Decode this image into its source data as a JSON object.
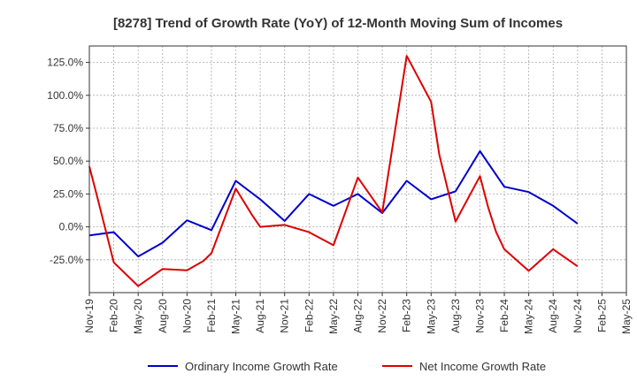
{
  "chart_data": {
    "type": "line",
    "title": "[8278]  Trend of Growth Rate (YoY) of 12-Month Moving Sum of Incomes",
    "xlabel": "",
    "ylabel": "",
    "ylim": [
      -50,
      137.5
    ],
    "y_ticks": [
      -25,
      0,
      25,
      50,
      75,
      100,
      125
    ],
    "y_tick_labels": [
      "-25.0%",
      "0.0%",
      "25.0%",
      "50.0%",
      "75.0%",
      "100.0%",
      "125.0%"
    ],
    "x_tick_labels": [
      "Nov-19",
      "Feb-20",
      "May-20",
      "Aug-20",
      "Nov-20",
      "Feb-21",
      "May-21",
      "Aug-21",
      "Nov-21",
      "Feb-22",
      "May-22",
      "Aug-22",
      "Nov-22",
      "Feb-23",
      "May-23",
      "Aug-23",
      "Nov-23",
      "Feb-24",
      "May-24",
      "Aug-24",
      "Nov-24",
      "Feb-25",
      "May-25"
    ],
    "grid": true,
    "legend_position": "bottom",
    "series": [
      {
        "name": "Ordinary Income Growth Rate",
        "color": "#0000cc",
        "points": [
          [
            0,
            -6.5
          ],
          [
            3,
            -4
          ],
          [
            6,
            -22.5
          ],
          [
            9,
            -12
          ],
          [
            12,
            5
          ],
          [
            15,
            -2.5
          ],
          [
            18,
            35
          ],
          [
            21,
            21
          ],
          [
            24,
            4.5
          ],
          [
            27,
            25
          ],
          [
            30,
            16
          ],
          [
            33,
            25
          ],
          [
            36,
            10.5
          ],
          [
            39,
            35
          ],
          [
            42,
            21
          ],
          [
            45,
            27
          ],
          [
            48,
            57.5
          ],
          [
            51,
            30.5
          ],
          [
            54,
            26.5
          ],
          [
            57,
            16
          ],
          [
            60,
            2.5
          ]
        ]
      },
      {
        "name": "Net Income Growth Rate",
        "color": "#dd0000",
        "points": [
          [
            0,
            46
          ],
          [
            1,
            22
          ],
          [
            3,
            -27
          ],
          [
            6,
            -45
          ],
          [
            9,
            -32
          ],
          [
            12,
            -33
          ],
          [
            14,
            -26
          ],
          [
            15,
            -20
          ],
          [
            18,
            29
          ],
          [
            20,
            9
          ],
          [
            21,
            0
          ],
          [
            24,
            1.5
          ],
          [
            27,
            -4
          ],
          [
            30,
            -14
          ],
          [
            33,
            37.5
          ],
          [
            36,
            11
          ],
          [
            39,
            130
          ],
          [
            42,
            95
          ],
          [
            43,
            55
          ],
          [
            45,
            4
          ],
          [
            48,
            38.5
          ],
          [
            49,
            15
          ],
          [
            50,
            -4
          ],
          [
            51,
            -17
          ],
          [
            54,
            -33.5
          ],
          [
            57,
            -17
          ],
          [
            60,
            -30
          ]
        ]
      }
    ]
  }
}
